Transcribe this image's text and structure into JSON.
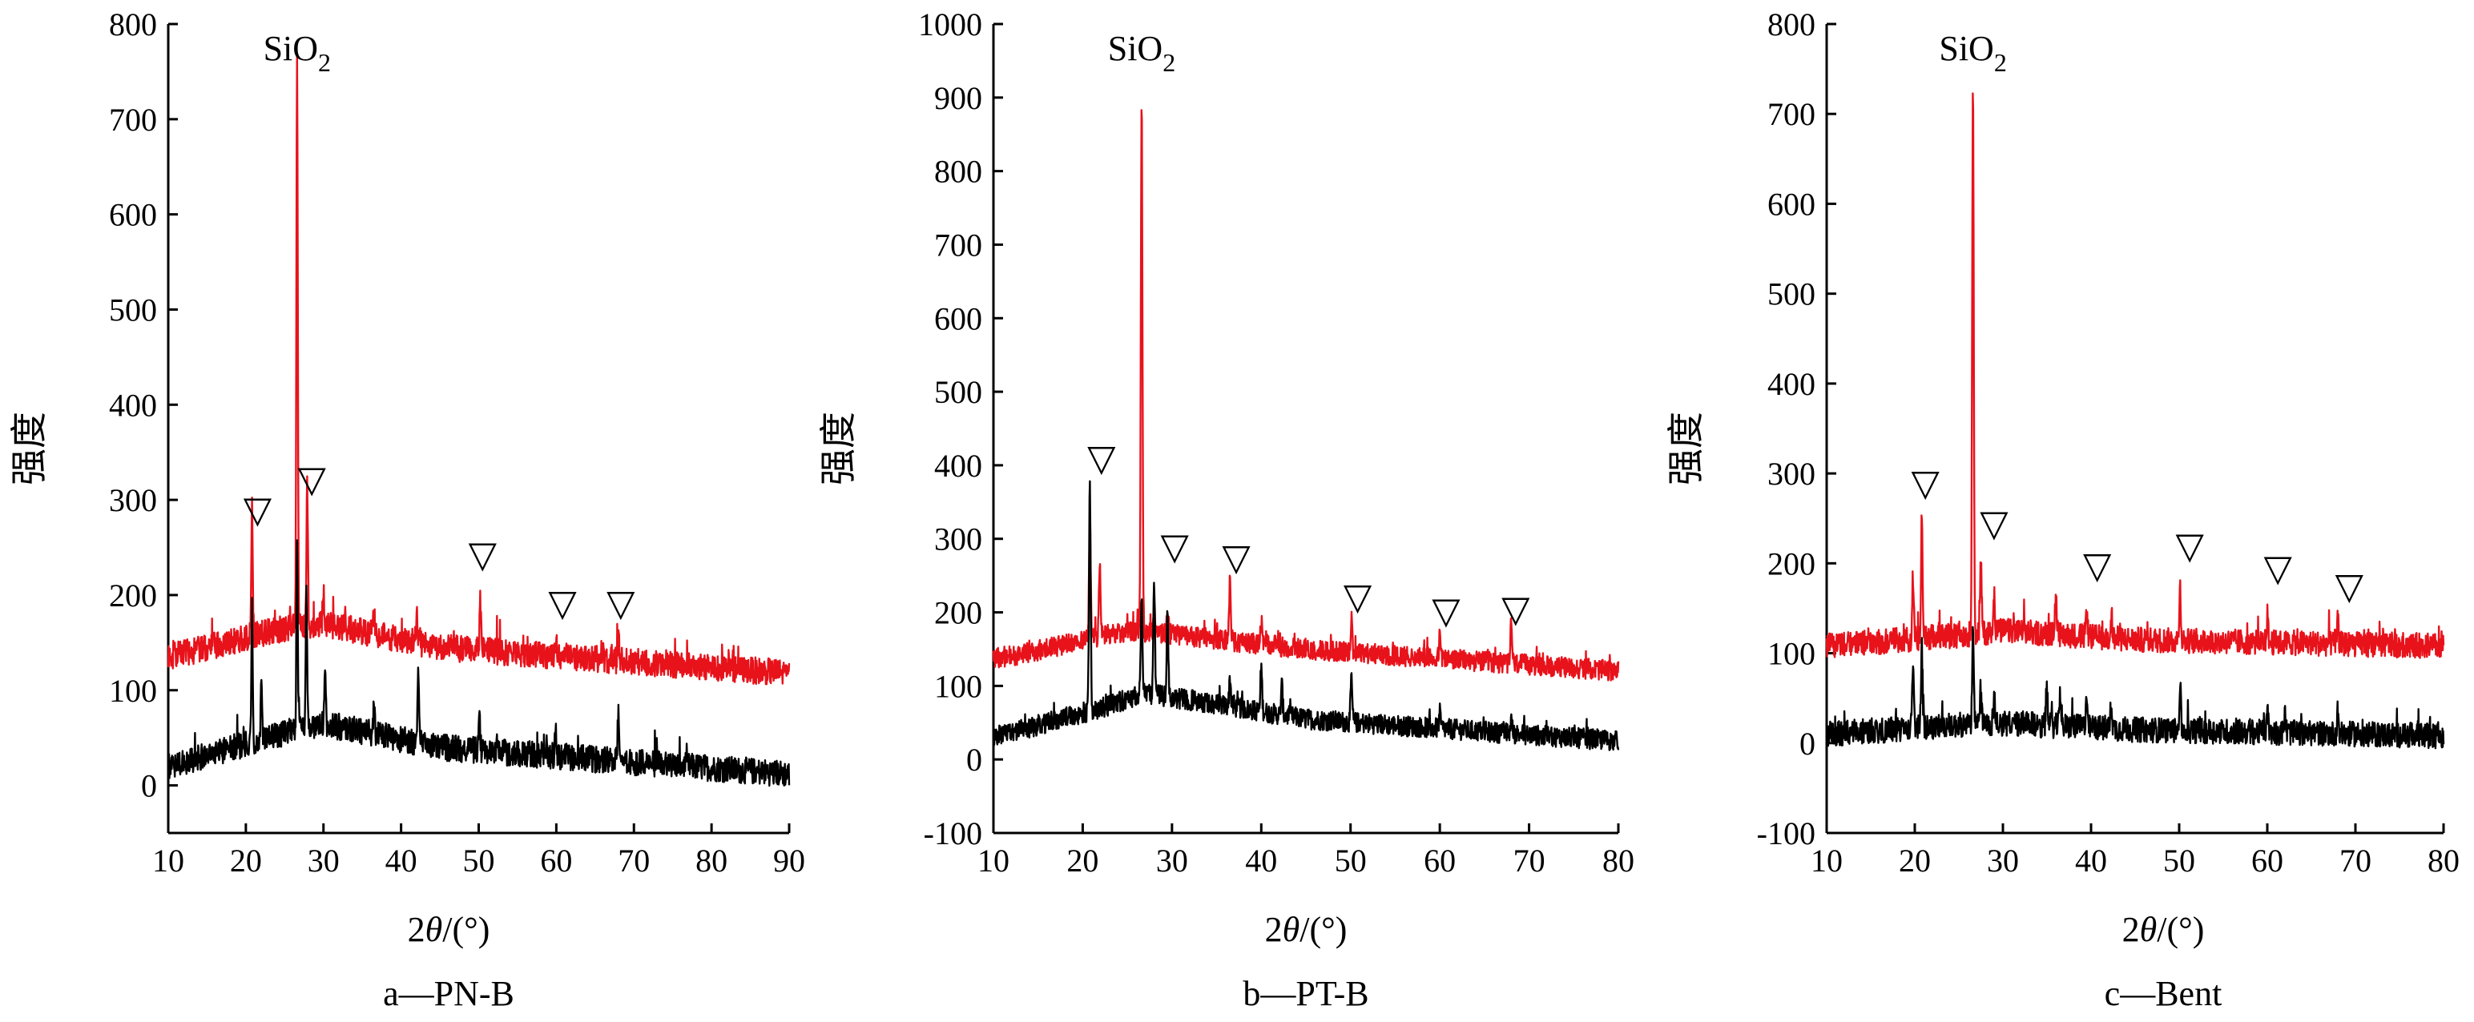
{
  "chart_data": [
    {
      "type": "line",
      "caption": "a—PN-B",
      "xlabel_prefix": "2",
      "xlabel_theta": "θ",
      "xlabel_suffix": "/(°)",
      "ylabel": "强度",
      "xlim": [
        10,
        90
      ],
      "ylim": [
        -50,
        800
      ],
      "xticks": [
        "10",
        "20",
        "30",
        "40",
        "50",
        "60",
        "70",
        "80",
        "90"
      ],
      "yticks": [
        "0",
        "100",
        "200",
        "300",
        "400",
        "500",
        "600",
        "700",
        "800"
      ],
      "annotation": {
        "base": "SiO",
        "sub": "2",
        "x": 26.6
      },
      "markers": [
        {
          "symbol": "▽",
          "x": 21.5,
          "y": 290
        },
        {
          "symbol": "▽",
          "x": 28.5,
          "y": 322
        },
        {
          "symbol": "▽",
          "x": 50.5,
          "y": 243
        },
        {
          "symbol": "▽",
          "x": 60.8,
          "y": 192
        },
        {
          "symbol": "▽",
          "x": 68.3,
          "y": 192
        }
      ],
      "series": [
        {
          "name": "red",
          "color": "#e8121b",
          "baseline": [
            [
              10,
              135
            ],
            [
              25,
              165
            ],
            [
              30,
              170
            ],
            [
              45,
              145
            ],
            [
              90,
              118
            ]
          ],
          "peaks": [
            [
              20.8,
              140
            ],
            [
              26.6,
              600
            ],
            [
              27.9,
              150
            ],
            [
              30,
              40
            ],
            [
              36.5,
              25
            ],
            [
              42,
              30
            ],
            [
              50.2,
              50
            ],
            [
              60,
              20
            ],
            [
              68,
              25
            ]
          ]
        },
        {
          "name": "black",
          "color": "#000000",
          "baseline": [
            [
              10,
              20
            ],
            [
              25,
              55
            ],
            [
              30,
              65
            ],
            [
              45,
              40
            ],
            [
              90,
              12
            ]
          ],
          "peaks": [
            [
              20.8,
              140
            ],
            [
              22,
              60
            ],
            [
              26.6,
              190
            ],
            [
              27.8,
              150
            ],
            [
              30.2,
              55
            ],
            [
              36.5,
              30
            ],
            [
              42.2,
              75
            ],
            [
              50.1,
              30
            ],
            [
              59.9,
              30
            ],
            [
              68,
              55
            ]
          ]
        }
      ]
    },
    {
      "type": "line",
      "caption": "b—PT-B",
      "xlabel_prefix": "2",
      "xlabel_theta": "θ",
      "xlabel_suffix": "/(°)",
      "ylabel": "强度",
      "xlim": [
        10,
        80
      ],
      "ylim": [
        -100,
        1000
      ],
      "xticks": [
        "10",
        "20",
        "30",
        "40",
        "50",
        "60",
        "70",
        "80"
      ],
      "yticks": [
        "-100",
        "0",
        "100",
        "200",
        "300",
        "400",
        "500",
        "600",
        "700",
        "800",
        "900",
        "1000"
      ],
      "annotation": {
        "base": "SiO",
        "sub": "2",
        "x": 26.6
      },
      "markers": [
        {
          "symbol": "▽",
          "x": 22.1,
          "y": 410
        },
        {
          "symbol": "▽",
          "x": 30.3,
          "y": 290
        },
        {
          "symbol": "▽",
          "x": 37.2,
          "y": 275
        },
        {
          "symbol": "▽",
          "x": 50.8,
          "y": 222
        },
        {
          "symbol": "▽",
          "x": 60.7,
          "y": 203
        },
        {
          "symbol": "▽",
          "x": 68.5,
          "y": 205
        }
      ],
      "series": [
        {
          "name": "red",
          "color": "#e8121b",
          "baseline": [
            [
              10,
              135
            ],
            [
              25,
              175
            ],
            [
              30,
              170
            ],
            [
              45,
              150
            ],
            [
              80,
              120
            ]
          ],
          "peaks": [
            [
              20.8,
              160
            ],
            [
              21.9,
              100
            ],
            [
              26.6,
              730
            ],
            [
              28,
              40
            ],
            [
              29.5,
              35
            ],
            [
              36.5,
              80
            ],
            [
              40,
              30
            ],
            [
              50.1,
              50
            ],
            [
              60,
              30
            ],
            [
              68,
              60
            ]
          ]
        },
        {
          "name": "black",
          "color": "#000000",
          "baseline": [
            [
              10,
              30
            ],
            [
              22,
              70
            ],
            [
              27,
              90
            ],
            [
              35,
              75
            ],
            [
              45,
              55
            ],
            [
              80,
              25
            ]
          ],
          "peaks": [
            [
              20.8,
              310
            ],
            [
              26.6,
              140
            ],
            [
              28,
              160
            ],
            [
              29.5,
              110
            ],
            [
              36.5,
              40
            ],
            [
              40,
              60
            ],
            [
              42.3,
              40
            ],
            [
              50.1,
              60
            ],
            [
              60,
              20
            ],
            [
              68,
              20
            ]
          ]
        }
      ]
    },
    {
      "type": "line",
      "caption": "c—Bent",
      "xlabel_prefix": "2",
      "xlabel_theta": "θ",
      "xlabel_suffix": "/(°)",
      "ylabel": "强度",
      "xlim": [
        10,
        80
      ],
      "ylim": [
        -100,
        800
      ],
      "xticks": [
        "10",
        "20",
        "30",
        "40",
        "50",
        "60",
        "70",
        "80"
      ],
      "yticks": [
        "-100",
        "0",
        "100",
        "200",
        "300",
        "400",
        "500",
        "600",
        "700",
        "800"
      ],
      "annotation": {
        "base": "SiO",
        "sub": "2",
        "x": 26.6
      },
      "markers": [
        {
          "symbol": "▽",
          "x": 21.2,
          "y": 290
        },
        {
          "symbol": "▽",
          "x": 29,
          "y": 245
        },
        {
          "symbol": "▽",
          "x": 40.7,
          "y": 198
        },
        {
          "symbol": "▽",
          "x": 51.2,
          "y": 220
        },
        {
          "symbol": "▽",
          "x": 61.2,
          "y": 195
        },
        {
          "symbol": "▽",
          "x": 69.3,
          "y": 175
        }
      ],
      "series": [
        {
          "name": "red",
          "color": "#e8121b",
          "baseline": [
            [
              10,
              108
            ],
            [
              25,
              120
            ],
            [
              30,
              125
            ],
            [
              45,
              115
            ],
            [
              80,
              108
            ]
          ],
          "peaks": [
            [
              19.8,
              70
            ],
            [
              20.8,
              140
            ],
            [
              26.6,
              610
            ],
            [
              27.5,
              80
            ],
            [
              29,
              45
            ],
            [
              36,
              45
            ],
            [
              39.5,
              30
            ],
            [
              42.3,
              30
            ],
            [
              50.1,
              60
            ],
            [
              60,
              30
            ],
            [
              68,
              25
            ]
          ]
        },
        {
          "name": "black",
          "color": "#000000",
          "baseline": [
            [
              10,
              10
            ],
            [
              25,
              20
            ],
            [
              30,
              22
            ],
            [
              45,
              15
            ],
            [
              80,
              8
            ]
          ],
          "peaks": [
            [
              19.8,
              60
            ],
            [
              20.8,
              90
            ],
            [
              26.6,
              100
            ],
            [
              27.5,
              40
            ],
            [
              29,
              35
            ],
            [
              35,
              40
            ],
            [
              36.5,
              40
            ],
            [
              39.5,
              40
            ],
            [
              42.3,
              30
            ],
            [
              50.1,
              50
            ],
            [
              60,
              30
            ],
            [
              62,
              20
            ],
            [
              68,
              25
            ]
          ]
        }
      ]
    }
  ]
}
